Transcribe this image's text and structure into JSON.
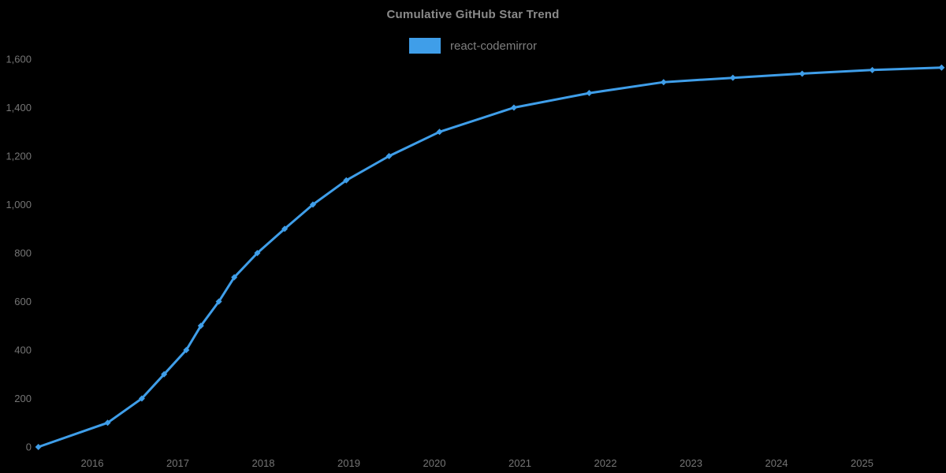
{
  "chart_data": {
    "type": "line",
    "title": "Cumulative GitHub Star Trend",
    "xlabel": "",
    "ylabel": "",
    "legend_position": "top",
    "grid": false,
    "background_color": "#000000",
    "ylim": [
      0,
      1600
    ],
    "xlim_years": [
      2015.37,
      2025.93
    ],
    "y_ticks": [
      0,
      200,
      400,
      600,
      800,
      1000,
      1200,
      1400,
      1600
    ],
    "x_ticks": [
      2016,
      2017,
      2018,
      2019,
      2020,
      2021,
      2022,
      2023,
      2024,
      2025
    ],
    "series": [
      {
        "name": "react-codemirror",
        "color": "#3F9EE9",
        "marker": "diamond",
        "points": [
          {
            "x": 2015.37,
            "y": 0
          },
          {
            "x": 2016.18,
            "y": 100
          },
          {
            "x": 2016.58,
            "y": 200
          },
          {
            "x": 2016.84,
            "y": 300
          },
          {
            "x": 2017.1,
            "y": 400
          },
          {
            "x": 2017.27,
            "y": 500
          },
          {
            "x": 2017.48,
            "y": 600
          },
          {
            "x": 2017.66,
            "y": 700
          },
          {
            "x": 2017.93,
            "y": 800
          },
          {
            "x": 2018.25,
            "y": 900
          },
          {
            "x": 2018.58,
            "y": 1000
          },
          {
            "x": 2018.97,
            "y": 1100
          },
          {
            "x": 2019.47,
            "y": 1200
          },
          {
            "x": 2020.06,
            "y": 1300
          },
          {
            "x": 2020.93,
            "y": 1400
          },
          {
            "x": 2021.81,
            "y": 1460
          },
          {
            "x": 2022.68,
            "y": 1505
          },
          {
            "x": 2023.49,
            "y": 1523
          },
          {
            "x": 2024.3,
            "y": 1540
          },
          {
            "x": 2025.12,
            "y": 1555
          },
          {
            "x": 2025.93,
            "y": 1565
          }
        ]
      }
    ]
  },
  "colors": {
    "background": "#000000",
    "title_text": "#8a8a8a",
    "legend_text": "#7f7f7f",
    "axis_text": "#757575",
    "accent_blue": "#3F9EE9"
  }
}
